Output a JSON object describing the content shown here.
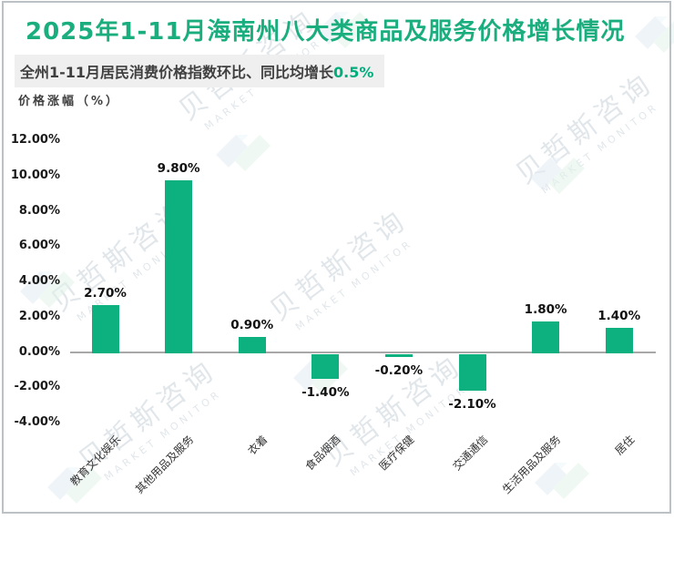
{
  "header": {
    "title": "2025年1-11月海南州八大类商品及服务价格增长情况",
    "subtitle_text": "全州1-11月居民消费价格指数环比、同比均增长",
    "subtitle_highlight": "0.5%"
  },
  "axis_title": "价格涨幅（%）",
  "watermark": {
    "cn": "贝哲斯咨询",
    "en": "MARKET MONITOR"
  },
  "colors": {
    "title_green": "#1aae7e",
    "bar_green": "#0db07f",
    "highlight_green": "#00ae7d",
    "zero_line_gray": "#a8a8a8",
    "subtitle_bg": "#efefef"
  },
  "chart_data": {
    "type": "bar",
    "title": "2025年1-11月海南州八大类商品及服务价格增长情况",
    "ylabel": "价格涨幅（%）",
    "xlabel": "",
    "categories": [
      "教育文化娱乐",
      "其他用品及服务",
      "衣着",
      "食品烟酒",
      "医疗保健",
      "交通通信",
      "生活用品及服务",
      "居住"
    ],
    "values": [
      2.7,
      9.8,
      0.9,
      -1.4,
      -0.2,
      -2.1,
      1.8,
      1.4
    ],
    "value_labels": [
      "2.70%",
      "9.80%",
      "0.90%",
      "-1.40%",
      "-0.20%",
      "-2.10%",
      "1.80%",
      "1.40%"
    ],
    "ytick_labels": [
      "12.00%",
      "10.00%",
      "8.00%",
      "6.00%",
      "4.00%",
      "2.00%",
      "0.00%",
      "-2.00%",
      "-4.00%"
    ],
    "ytick_values": [
      12,
      10,
      8,
      6,
      4,
      2,
      0,
      -2,
      -4
    ],
    "ylim": [
      -4,
      12
    ],
    "grid": false,
    "legend": null,
    "bar_color": "#0db07f"
  }
}
